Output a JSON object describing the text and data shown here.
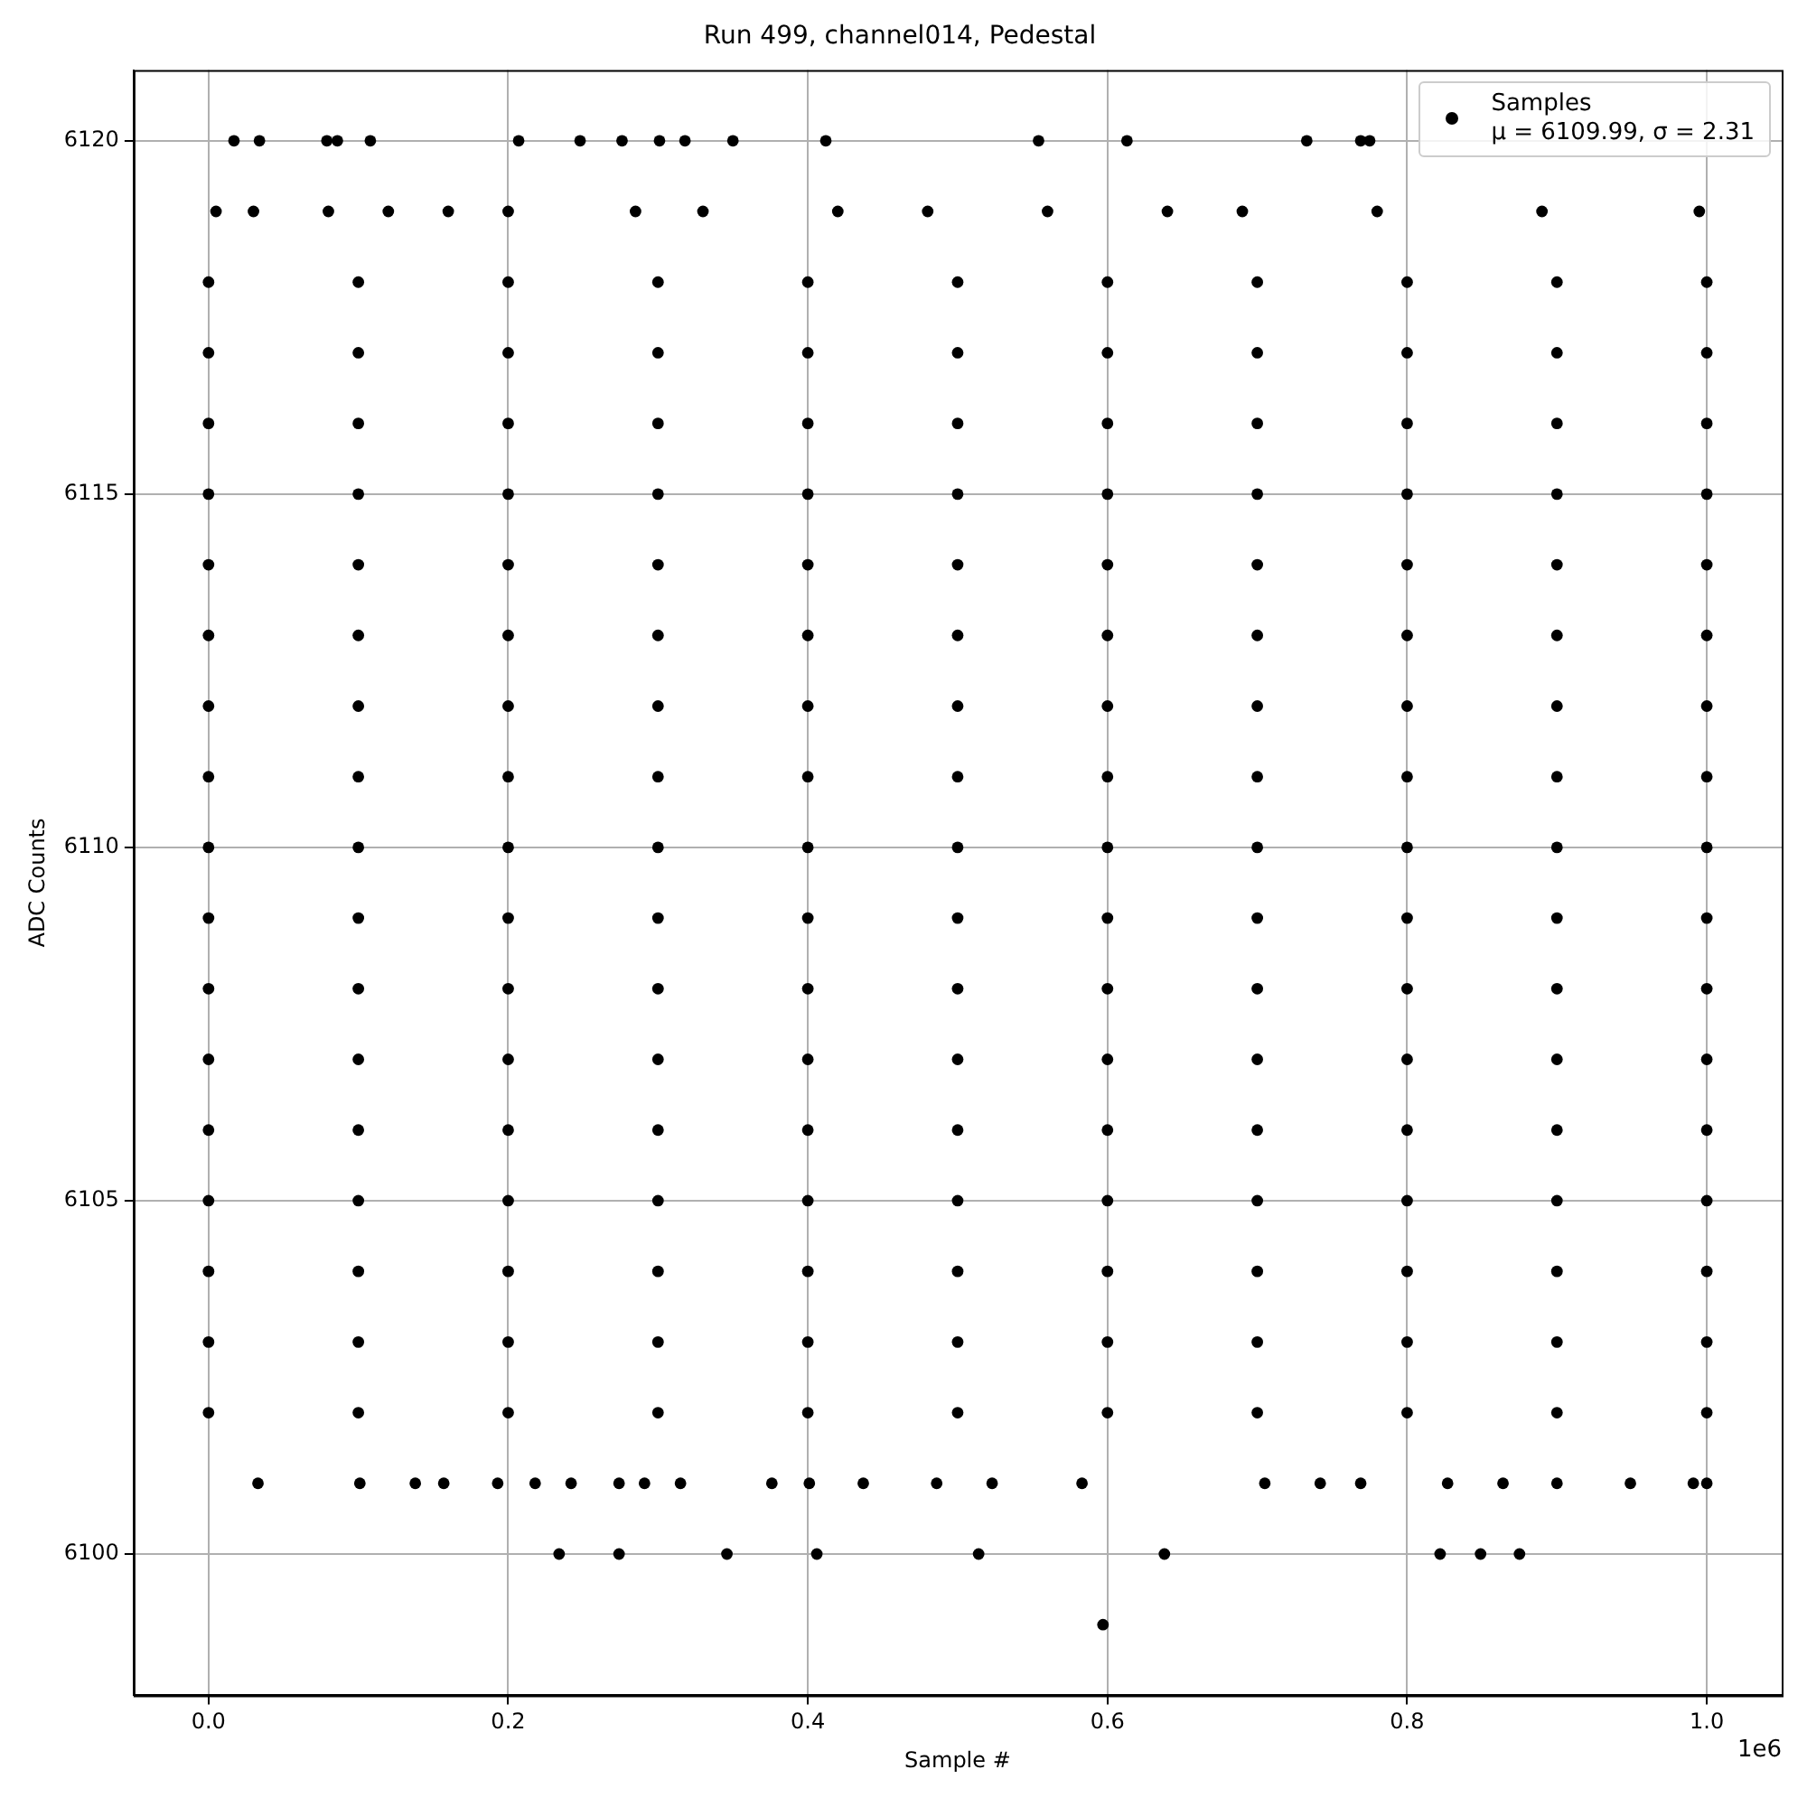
{
  "chart_data": {
    "type": "scatter",
    "title": "Run 499, channel014, Pedestal",
    "xlabel": "Sample #",
    "ylabel": "ADC Counts",
    "annotations": [
      "1e6"
    ],
    "xlim": [
      -0.05,
      1.05
    ],
    "xticks": [
      {
        "value": 0,
        "label": "0.0"
      },
      0.2,
      0.4,
      0.6,
      0.8,
      {
        "value": 1,
        "label": "1.0"
      }
    ],
    "ylim": [
      6098,
      6121
    ],
    "yticks": [
      6100,
      6105,
      6110,
      6115,
      6120
    ],
    "grid": true,
    "legend": "top right",
    "marker": "circle",
    "series": [
      {
        "name": "Samples\nμ = 6109.99, σ = 2.31",
        "color": "#000000",
        "x": [
          0.017,
          0.034,
          0.079,
          0.086,
          0.108,
          0.207,
          0.248,
          0.276,
          0.301,
          0.318,
          0.35,
          0.412,
          0.554,
          0.613,
          0.733,
          0.769,
          0.775,
          0.005,
          0.03,
          0.08,
          0.12,
          0.16,
          0.2,
          0.285,
          0.33,
          0.42,
          0.48,
          0.56,
          0.64,
          0.69,
          0.78,
          0.89,
          0.995,
          0,
          0.1,
          0.2,
          0.3,
          0.4,
          0.5,
          0.6,
          0.7,
          0.8,
          0.9,
          1,
          0,
          0.1,
          0.2,
          0.3,
          0.4,
          0.5,
          0.6,
          0.7,
          0.8,
          0.9,
          1,
          0,
          0.1,
          0.2,
          0.3,
          0.4,
          0.5,
          0.6,
          0.7,
          0.8,
          0.9,
          1,
          0,
          0.1,
          0.2,
          0.3,
          0.4,
          0.5,
          0.6,
          0.7,
          0.8,
          0.9,
          1,
          0,
          0.1,
          0.2,
          0.3,
          0.4,
          0.5,
          0.6,
          0.7,
          0.8,
          0.9,
          1,
          0,
          0.1,
          0.2,
          0.3,
          0.4,
          0.5,
          0.6,
          0.7,
          0.8,
          0.9,
          1,
          0,
          0.1,
          0.2,
          0.3,
          0.4,
          0.5,
          0.6,
          0.7,
          0.8,
          0.9,
          1,
          0,
          0.1,
          0.2,
          0.3,
          0.4,
          0.5,
          0.6,
          0.7,
          0.8,
          0.9,
          1,
          0,
          0.1,
          0.2,
          0.3,
          0.4,
          0.5,
          0.6,
          0.7,
          0.8,
          0.9,
          1,
          0,
          0.1,
          0.2,
          0.3,
          0.4,
          0.5,
          0.6,
          0.7,
          0.8,
          0.9,
          1,
          0,
          0.1,
          0.2,
          0.3,
          0.4,
          0.5,
          0.6,
          0.7,
          0.8,
          0.9,
          1,
          0,
          0.1,
          0.2,
          0.3,
          0.4,
          0.5,
          0.6,
          0.7,
          0.8,
          0.9,
          1,
          0,
          0.1,
          0.2,
          0.3,
          0.4,
          0.5,
          0.6,
          0.7,
          0.8,
          0.9,
          1,
          0,
          0.1,
          0.2,
          0.3,
          0.4,
          0.5,
          0.6,
          0.7,
          0.8,
          0.9,
          1,
          0,
          0.1,
          0.2,
          0.3,
          0.4,
          0.5,
          0.6,
          0.7,
          0.8,
          0.9,
          1,
          0,
          0.1,
          0.2,
          0.3,
          0.4,
          0.5,
          0.6,
          0.7,
          0.8,
          0.9,
          1,
          0,
          0.1,
          0.2,
          0.3,
          0.4,
          0.5,
          0.6,
          0.7,
          0.8,
          0.9,
          1,
          0.033,
          0.101,
          0.138,
          0.157,
          0.193,
          0.218,
          0.242,
          0.274,
          0.291,
          0.315,
          0.376,
          0.401,
          0.437,
          0.486,
          0.523,
          0.583,
          0.705,
          0.742,
          0.769,
          0.827,
          0.864,
          0.9,
          0.949,
          0.991,
          1,
          0.234,
          0.274,
          0.346,
          0.406,
          0.514,
          0.638,
          0.822,
          0.849,
          0.875,
          0.597
        ],
        "values": [
          6120,
          6120,
          6120,
          6120,
          6120,
          6120,
          6120,
          6120,
          6120,
          6120,
          6120,
          6120,
          6120,
          6120,
          6120,
          6120,
          6120,
          6119,
          6119,
          6119,
          6119,
          6119,
          6119,
          6119,
          6119,
          6119,
          6119,
          6119,
          6119,
          6119,
          6119,
          6119,
          6119,
          6118,
          6118,
          6118,
          6118,
          6118,
          6118,
          6118,
          6118,
          6118,
          6118,
          6118,
          6117,
          6117,
          6117,
          6117,
          6117,
          6117,
          6117,
          6117,
          6117,
          6117,
          6117,
          6116,
          6116,
          6116,
          6116,
          6116,
          6116,
          6116,
          6116,
          6116,
          6116,
          6116,
          6115,
          6115,
          6115,
          6115,
          6115,
          6115,
          6115,
          6115,
          6115,
          6115,
          6115,
          6114,
          6114,
          6114,
          6114,
          6114,
          6114,
          6114,
          6114,
          6114,
          6114,
          6114,
          6113,
          6113,
          6113,
          6113,
          6113,
          6113,
          6113,
          6113,
          6113,
          6113,
          6113,
          6112,
          6112,
          6112,
          6112,
          6112,
          6112,
          6112,
          6112,
          6112,
          6112,
          6112,
          6111,
          6111,
          6111,
          6111,
          6111,
          6111,
          6111,
          6111,
          6111,
          6111,
          6111,
          6110,
          6110,
          6110,
          6110,
          6110,
          6110,
          6110,
          6110,
          6110,
          6110,
          6110,
          6109,
          6109,
          6109,
          6109,
          6109,
          6109,
          6109,
          6109,
          6109,
          6109,
          6109,
          6108,
          6108,
          6108,
          6108,
          6108,
          6108,
          6108,
          6108,
          6108,
          6108,
          6108,
          6107,
          6107,
          6107,
          6107,
          6107,
          6107,
          6107,
          6107,
          6107,
          6107,
          6107,
          6106,
          6106,
          6106,
          6106,
          6106,
          6106,
          6106,
          6106,
          6106,
          6106,
          6106,
          6105,
          6105,
          6105,
          6105,
          6105,
          6105,
          6105,
          6105,
          6105,
          6105,
          6105,
          6104,
          6104,
          6104,
          6104,
          6104,
          6104,
          6104,
          6104,
          6104,
          6104,
          6104,
          6103,
          6103,
          6103,
          6103,
          6103,
          6103,
          6103,
          6103,
          6103,
          6103,
          6103,
          6102,
          6102,
          6102,
          6102,
          6102,
          6102,
          6102,
          6102,
          6102,
          6102,
          6102,
          6101,
          6101,
          6101,
          6101,
          6101,
          6101,
          6101,
          6101,
          6101,
          6101,
          6101,
          6101,
          6101,
          6101,
          6101,
          6101,
          6101,
          6101,
          6101,
          6101,
          6101,
          6101,
          6101,
          6101,
          6101,
          6100,
          6100,
          6100,
          6100,
          6100,
          6100,
          6100,
          6100,
          6100,
          6099
        ]
      }
    ]
  }
}
